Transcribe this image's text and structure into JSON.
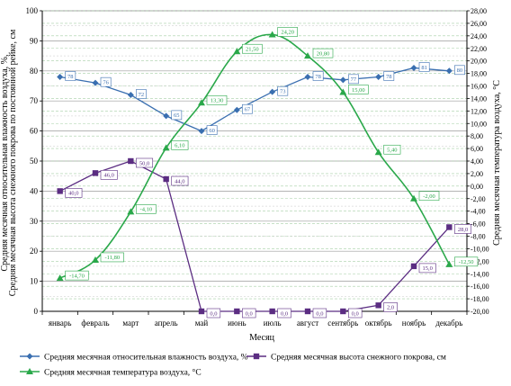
{
  "chart_data": {
    "type": "line",
    "categories": [
      "январь",
      "февраль",
      "март",
      "апрель",
      "май",
      "июнь",
      "июль",
      "август",
      "сентябрь",
      "октябрь",
      "ноябрь",
      "декабрь"
    ],
    "xlabel": "Месяц",
    "ylabel_left": "Средняя месячная относительная влажность воздуха, %, Средняя месячная высота снежного покрова по постоянной рейке, см",
    "ylabel_left_lines": [
      "Средняя месячная высота снежного покрова по постоянной рейке, см",
      "Средняя месячная относительная влажность воздуха, %,"
    ],
    "ylabel_right": "Средняя месячная температура воздуха, °С",
    "ylim_left": [
      0,
      100
    ],
    "ylim_right": [
      -20,
      28
    ],
    "yticks_left": [
      "0",
      "10",
      "20",
      "30",
      "40",
      "50",
      "60",
      "70",
      "80",
      "90",
      "100"
    ],
    "yticks_right": [
      "-20,00",
      "-18,00",
      "-16,00",
      "-14,00",
      "-12,00",
      "-10,00",
      "-8,00",
      "-6,00",
      "-4,00",
      "-2,00",
      "0,00",
      "2,00",
      "4,00",
      "6,00",
      "8,00",
      "10,00",
      "12,00",
      "14,00",
      "16,00",
      "18,00",
      "20,00",
      "22,00",
      "24,00",
      "26,00",
      "28,00"
    ],
    "grid": true,
    "legend_position": "bottom",
    "series": [
      {
        "name": "Средняя  месячная  относительная влажность воздуха, %",
        "axis": "left",
        "color": "#3a6fb0",
        "marker": "diamond",
        "values": [
          78,
          76,
          72,
          65,
          60,
          67,
          73,
          78,
          77,
          78,
          81,
          80
        ],
        "labels": [
          "78",
          "76",
          "72",
          "65",
          "60",
          "67",
          "73",
          "78",
          "77",
          "78",
          "81",
          "80"
        ]
      },
      {
        "name": "Средняя месячная высота снежного покрова, см",
        "axis": "left",
        "color": "#5b2d82",
        "marker": "square",
        "values": [
          40,
          46,
          50,
          44,
          0,
          0,
          0,
          0,
          0,
          2,
          15,
          28
        ],
        "labels": [
          "40,0",
          "46,0",
          "50,0",
          "44,0",
          "0,0",
          "0,0",
          "0,0",
          "0,0",
          "0,0",
          "2,0",
          "15,0",
          "28,0"
        ]
      },
      {
        "name": "Средняя месячная температура воздуха, °С",
        "axis": "right",
        "color": "#2aa84a",
        "marker": "triangle",
        "values": [
          -14.7,
          -11.8,
          -4.1,
          6.1,
          13.3,
          21.5,
          24.2,
          20.8,
          15.0,
          5.4,
          -2.0,
          -12.5
        ],
        "labels": [
          "-14,70",
          "-11,80",
          "-4,10",
          "6,10",
          "13,30",
          "21,50",
          "24,20",
          "20,80",
          "15,00",
          "5,40",
          "-2,00",
          "-12,50"
        ]
      }
    ]
  }
}
